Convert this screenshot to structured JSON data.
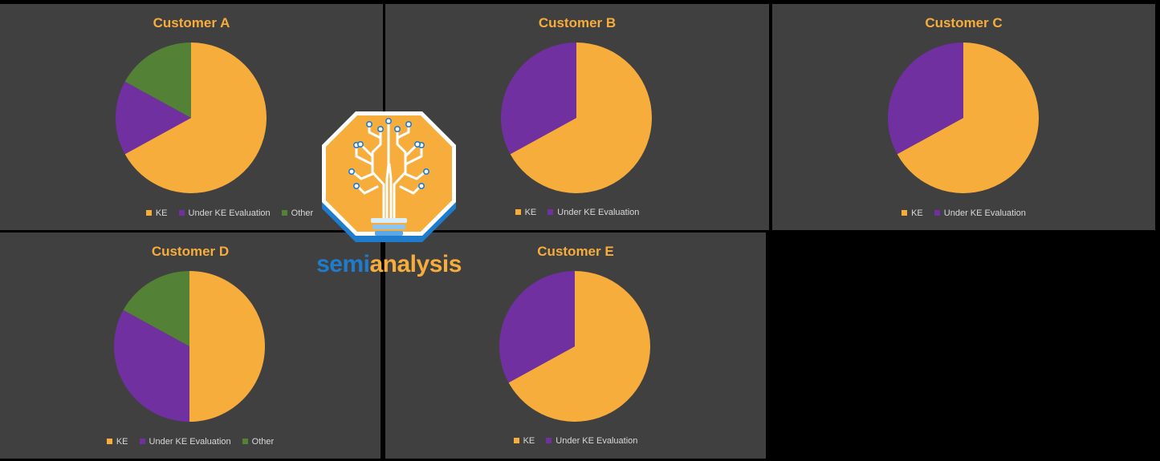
{
  "colors": {
    "KE": "#f6ad3c",
    "Under KE Evaluation": "#7030a0",
    "Other": "#538135",
    "title": "#f6ad3c",
    "panel_bg": "#404040"
  },
  "brand": {
    "part1": "semi",
    "part2": "analysis",
    "color1": "#1f7ccc",
    "color2": "#f6ad3c"
  },
  "chart_data": [
    {
      "type": "pie",
      "title": "Customer A",
      "labels": [
        "KE",
        "Under KE Evaluation",
        "Other"
      ],
      "values": [
        67,
        16,
        17
      ]
    },
    {
      "type": "pie",
      "title": "Customer B",
      "labels": [
        "KE",
        "Under KE Evaluation"
      ],
      "values": [
        67,
        33
      ]
    },
    {
      "type": "pie",
      "title": "Customer C",
      "labels": [
        "KE",
        "Under KE Evaluation"
      ],
      "values": [
        67,
        33
      ]
    },
    {
      "type": "pie",
      "title": "Customer D",
      "labels": [
        "KE",
        "Under KE Evaluation",
        "Other"
      ],
      "values": [
        50,
        33,
        17
      ]
    },
    {
      "type": "pie",
      "title": "Customer E",
      "labels": [
        "KE",
        "Under KE Evaluation"
      ],
      "values": [
        67,
        33
      ]
    }
  ]
}
